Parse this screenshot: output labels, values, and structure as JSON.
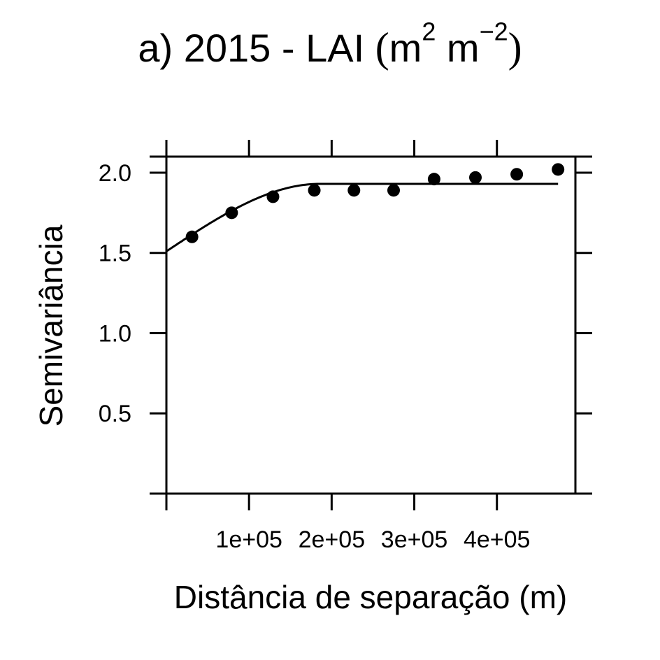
{
  "chart_data": {
    "type": "scatter",
    "title": {
      "main": "a) 2015 - LAI ",
      "paren_open": "(",
      "unit_m1": "m",
      "unit_exp1": "2",
      "unit_space": " ",
      "unit_m2": "m",
      "unit_exp2": "−2",
      "paren_close": ")"
    },
    "xlabel": "Distância de separação (m)",
    "ylabel": "Semivariância",
    "xlim": [
      0,
      495000
    ],
    "ylim": [
      0,
      2.1
    ],
    "x_ticks": [
      0,
      100000,
      200000,
      300000,
      400000
    ],
    "x_tick_labels": [
      "",
      "1e+05",
      "2e+05",
      "3e+05",
      "4e+05"
    ],
    "y_ticks": [
      0.5,
      1.0,
      1.5,
      2.0
    ],
    "y_tick_labels": [
      "0.5",
      "1.0",
      "1.5",
      "2.0"
    ],
    "grid": false,
    "series": [
      {
        "kind": "points",
        "x": [
          31000,
          79000,
          129000,
          179000,
          227000,
          275000,
          324000,
          374000,
          424000,
          474000
        ],
        "y": [
          1.6,
          1.75,
          1.85,
          1.89,
          1.89,
          1.89,
          1.96,
          1.97,
          1.99,
          2.02
        ]
      },
      {
        "kind": "fitted-model",
        "model": "spherical",
        "nugget": 1.51,
        "sill": 1.93,
        "range": 185000,
        "x_max": 474000
      }
    ]
  }
}
